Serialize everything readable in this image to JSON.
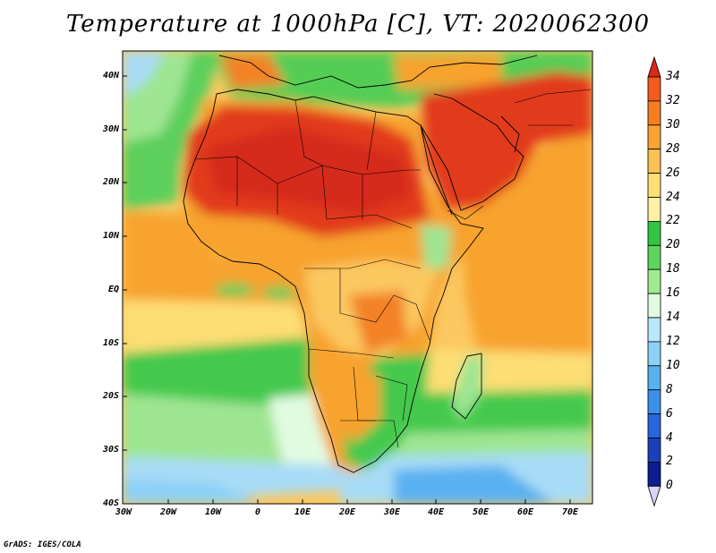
{
  "title": "Temperature at 1000hPa [C], VT: 2020062300",
  "credit": "GrADS: IGES/COLA",
  "lat_labels": [
    "40N",
    "30N",
    "20N",
    "10N",
    "EQ",
    "10S",
    "20S",
    "30S",
    "40S"
  ],
  "lon_labels": [
    "30W",
    "20W",
    "10W",
    "0",
    "10E",
    "20E",
    "30E",
    "40E",
    "50E",
    "60E",
    "70E"
  ],
  "colorbar": {
    "labels": [
      "34",
      "32",
      "30",
      "28",
      "26",
      "24",
      "22",
      "20",
      "18",
      "16",
      "14",
      "12",
      "10",
      "8",
      "6",
      "4",
      "2",
      "0"
    ],
    "colors": [
      "#f03a1e",
      "#f55a1e",
      "#f77e1e",
      "#faa233",
      "#fbc153",
      "#fdde75",
      "#fef1a2",
      "#33c541",
      "#5ed65c",
      "#9feb91",
      "#e1fbe1",
      "#b9e8fb",
      "#8cd0f6",
      "#5ab1f1",
      "#3b90ea",
      "#2766dd",
      "#1a3fb9",
      "#0c1d8f"
    ],
    "top_triangle_color": "#d62a1a",
    "bottom_triangle_color": "#dcd2f8"
  },
  "colors": {
    "ocean_warm": "#f7a32e",
    "ocean_mid": "#fbc861",
    "ocean_cool_green": "#45c94e",
    "ocean_light_green": "#9ee592",
    "ocean_cold": "#a7dcf6",
    "ocean_coldest": "#4b9ee9",
    "sahara": "#e23a1c",
    "land_orange": "#f38226",
    "med_green": "#55cd55",
    "coastline": "#000000"
  }
}
